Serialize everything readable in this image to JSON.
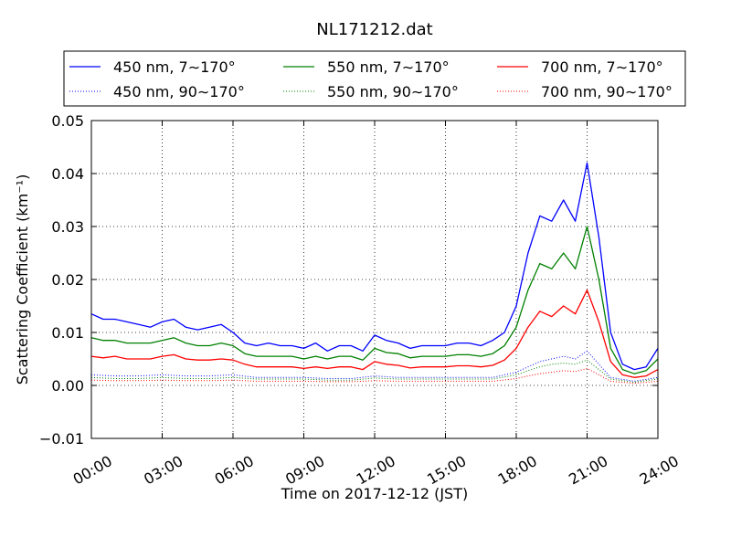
{
  "chart_data": {
    "type": "line",
    "title": "NL171212.dat",
    "xlabel": "Time on 2017-12-12 (JST)",
    "ylabel": "Scattering Coefficient (km⁻¹)",
    "xlim": [
      0,
      24
    ],
    "ylim": [
      -0.01,
      0.05
    ],
    "grid": true,
    "legend_position": "top (above plot)",
    "x_tick_labels": [
      "00:00",
      "03:00",
      "06:00",
      "09:00",
      "12:00",
      "15:00",
      "18:00",
      "21:00",
      "24:00"
    ],
    "y_tick_labels": [
      "−0.01",
      "0.00",
      "0.01",
      "0.02",
      "0.03",
      "0.04",
      "0.05"
    ],
    "series": [
      {
        "name": "450 nm, 7∼170°",
        "color": "#0000ff",
        "style": "solid",
        "x": [
          0,
          0.5,
          1,
          1.5,
          2,
          2.5,
          3,
          3.5,
          4,
          4.5,
          5,
          5.5,
          6,
          6.5,
          7,
          7.5,
          8,
          8.5,
          9,
          9.5,
          10,
          10.5,
          11,
          11.5,
          12,
          12.5,
          13,
          13.5,
          14,
          14.5,
          15,
          15.5,
          16,
          16.5,
          17,
          17.5,
          18,
          18.5,
          19,
          19.5,
          20,
          20.5,
          21,
          21.5,
          22,
          22.5,
          23,
          23.5,
          24
        ],
        "values": [
          0.0135,
          0.0125,
          0.0125,
          0.012,
          0.0115,
          0.011,
          0.012,
          0.0125,
          0.011,
          0.0105,
          0.011,
          0.0115,
          0.01,
          0.008,
          0.0075,
          0.008,
          0.0075,
          0.0075,
          0.007,
          0.008,
          0.0065,
          0.0075,
          0.0075,
          0.0065,
          0.0095,
          0.0085,
          0.008,
          0.007,
          0.0075,
          0.0075,
          0.0075,
          0.008,
          0.008,
          0.0075,
          0.0085,
          0.01,
          0.015,
          0.025,
          0.032,
          0.031,
          0.035,
          0.031,
          0.042,
          0.028,
          0.01,
          0.004,
          0.003,
          0.0035,
          0.007
        ]
      },
      {
        "name": "550 nm, 7∼170°",
        "color": "#008000",
        "style": "solid",
        "x": [
          0,
          0.5,
          1,
          1.5,
          2,
          2.5,
          3,
          3.5,
          4,
          4.5,
          5,
          5.5,
          6,
          6.5,
          7,
          7.5,
          8,
          8.5,
          9,
          9.5,
          10,
          10.5,
          11,
          11.5,
          12,
          12.5,
          13,
          13.5,
          14,
          14.5,
          15,
          15.5,
          16,
          16.5,
          17,
          17.5,
          18,
          18.5,
          19,
          19.5,
          20,
          20.5,
          21,
          21.5,
          22,
          22.5,
          23,
          23.5,
          24
        ],
        "values": [
          0.009,
          0.0085,
          0.0085,
          0.008,
          0.008,
          0.008,
          0.0085,
          0.009,
          0.008,
          0.0075,
          0.0075,
          0.008,
          0.0075,
          0.006,
          0.0055,
          0.0055,
          0.0055,
          0.0055,
          0.005,
          0.0055,
          0.005,
          0.0055,
          0.0055,
          0.0048,
          0.007,
          0.0062,
          0.006,
          0.0052,
          0.0055,
          0.0055,
          0.0055,
          0.0058,
          0.0058,
          0.0055,
          0.006,
          0.0075,
          0.011,
          0.018,
          0.023,
          0.022,
          0.025,
          0.022,
          0.03,
          0.02,
          0.007,
          0.003,
          0.0022,
          0.0028,
          0.005
        ]
      },
      {
        "name": "700 nm, 7∼170°",
        "color": "#ff0000",
        "style": "solid",
        "x": [
          0,
          0.5,
          1,
          1.5,
          2,
          2.5,
          3,
          3.5,
          4,
          4.5,
          5,
          5.5,
          6,
          6.5,
          7,
          7.5,
          8,
          8.5,
          9,
          9.5,
          10,
          10.5,
          11,
          11.5,
          12,
          12.5,
          13,
          13.5,
          14,
          14.5,
          15,
          15.5,
          16,
          16.5,
          17,
          17.5,
          18,
          18.5,
          19,
          19.5,
          20,
          20.5,
          21,
          21.5,
          22,
          22.5,
          23,
          23.5,
          24
        ],
        "values": [
          0.0055,
          0.0052,
          0.0055,
          0.005,
          0.005,
          0.005,
          0.0055,
          0.0058,
          0.005,
          0.0048,
          0.0048,
          0.005,
          0.0048,
          0.004,
          0.0035,
          0.0035,
          0.0035,
          0.0035,
          0.0032,
          0.0035,
          0.0032,
          0.0035,
          0.0035,
          0.003,
          0.0045,
          0.004,
          0.0038,
          0.0033,
          0.0035,
          0.0035,
          0.0035,
          0.0037,
          0.0037,
          0.0035,
          0.0038,
          0.0048,
          0.007,
          0.011,
          0.014,
          0.013,
          0.015,
          0.0135,
          0.018,
          0.012,
          0.0045,
          0.002,
          0.0015,
          0.0018,
          0.003
        ]
      },
      {
        "name": "450 nm, 90∼170°",
        "color": "#0000ff",
        "style": "dotted",
        "x": [
          0,
          1,
          2,
          3,
          4,
          5,
          6,
          7,
          8,
          9,
          10,
          11,
          12,
          13,
          14,
          15,
          16,
          17,
          18,
          18.5,
          19,
          19.5,
          20,
          20.5,
          21,
          21.5,
          22,
          23,
          24
        ],
        "values": [
          0.002,
          0.0018,
          0.0018,
          0.002,
          0.0018,
          0.0018,
          0.002,
          0.0015,
          0.0015,
          0.0015,
          0.0013,
          0.0013,
          0.0018,
          0.0015,
          0.0015,
          0.0015,
          0.0015,
          0.0015,
          0.0025,
          0.0035,
          0.0045,
          0.005,
          0.0055,
          0.005,
          0.0065,
          0.004,
          0.0015,
          0.0008,
          0.0015
        ]
      },
      {
        "name": "550 nm, 90∼170°",
        "color": "#008000",
        "style": "dotted",
        "x": [
          0,
          1,
          2,
          3,
          4,
          5,
          6,
          7,
          8,
          9,
          10,
          11,
          12,
          13,
          14,
          15,
          16,
          17,
          18,
          18.5,
          19,
          19.5,
          20,
          20.5,
          21,
          21.5,
          22,
          23,
          24
        ],
        "values": [
          0.0015,
          0.0013,
          0.0013,
          0.0015,
          0.0013,
          0.0013,
          0.0015,
          0.0012,
          0.0012,
          0.0012,
          0.001,
          0.001,
          0.0014,
          0.0012,
          0.0012,
          0.0012,
          0.0012,
          0.0012,
          0.002,
          0.0028,
          0.0035,
          0.004,
          0.0042,
          0.004,
          0.0048,
          0.003,
          0.0012,
          0.0006,
          0.0012
        ]
      },
      {
        "name": "700 nm, 90∼170°",
        "color": "#ff0000",
        "style": "dotted",
        "x": [
          0,
          1,
          2,
          3,
          4,
          5,
          6,
          7,
          8,
          9,
          10,
          11,
          12,
          13,
          14,
          15,
          16,
          17,
          18,
          18.5,
          19,
          19.5,
          20,
          20.5,
          21,
          21.5,
          22,
          23,
          24
        ],
        "values": [
          0.001,
          0.0009,
          0.0009,
          0.001,
          0.0009,
          0.0009,
          0.001,
          0.0008,
          0.0008,
          0.0008,
          0.0007,
          0.0007,
          0.0009,
          0.0008,
          0.0008,
          0.0008,
          0.0008,
          0.0008,
          0.0013,
          0.0018,
          0.0022,
          0.0025,
          0.0028,
          0.0026,
          0.0032,
          0.002,
          0.0008,
          0.0004,
          0.0008
        ]
      }
    ]
  }
}
